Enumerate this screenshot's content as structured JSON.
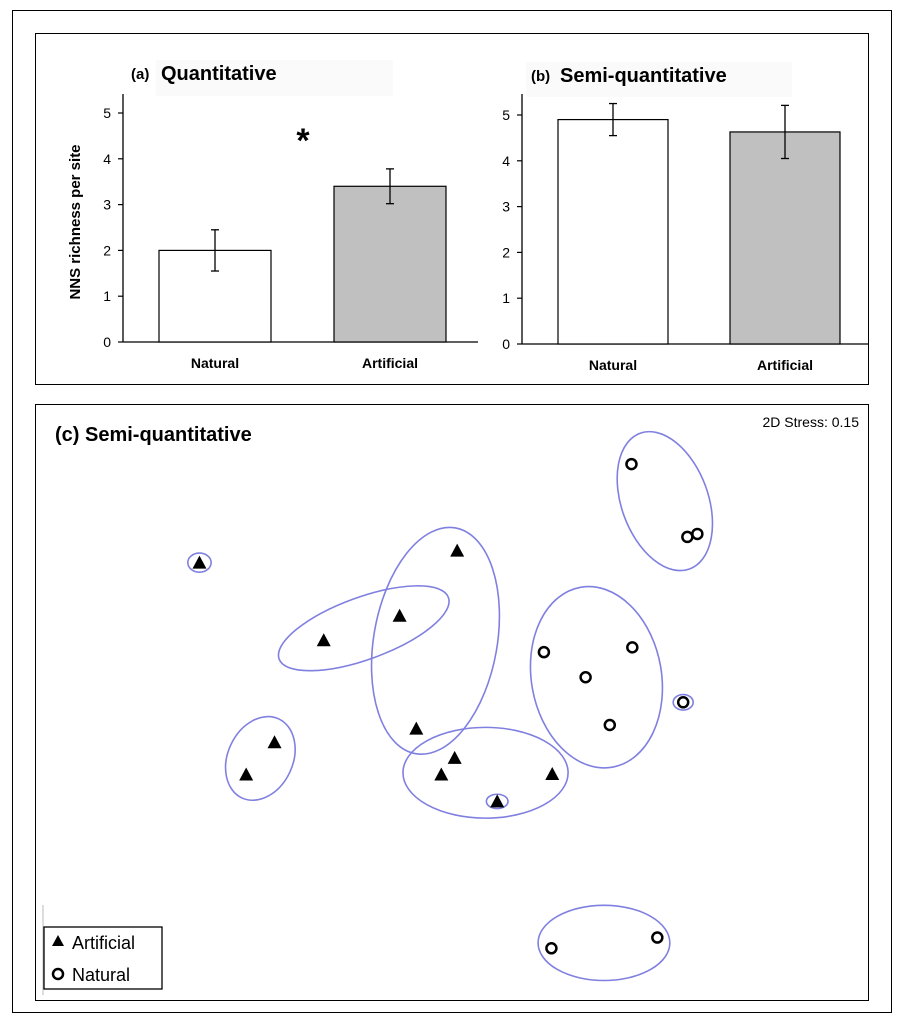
{
  "chart_data": [
    {
      "panel": "a",
      "type": "bar",
      "title": "(a) Quantitative",
      "title_prefix": "(a)",
      "title_text": "Quantitative",
      "ylabel": "NNS richness per site",
      "categories": [
        "Natural",
        "Artificial"
      ],
      "values": [
        2.0,
        3.4
      ],
      "errors": [
        0.45,
        0.38
      ],
      "bar_colors": [
        "#ffffff",
        "#c0c0c0"
      ],
      "ylim": [
        0,
        5
      ],
      "yticks": [
        0,
        1,
        2,
        3,
        4,
        5
      ],
      "annotation": "*"
    },
    {
      "panel": "b",
      "type": "bar",
      "title": "(b) Semi-quantitative",
      "title_prefix": "(b)",
      "title_text": "Semi-quantitative",
      "categories": [
        "Natural",
        "Artificial"
      ],
      "values": [
        4.9,
        4.63
      ],
      "errors": [
        0.35,
        0.58
      ],
      "bar_colors": [
        "#ffffff",
        "#c0c0c0"
      ],
      "ylim": [
        0,
        5
      ],
      "yticks": [
        0,
        1,
        2,
        3,
        4,
        5
      ]
    },
    {
      "panel": "c",
      "type": "scatter",
      "title": "(c) Semi-quantitative",
      "stress_label": "2D Stress: 0.15",
      "xlim": [
        0,
        100
      ],
      "ylim": [
        0,
        100
      ],
      "legend_position": "bottom-left",
      "ellipse_color": "#8080e0",
      "series": [
        {
          "name": "Artificial",
          "marker": "triangle",
          "points": [
            [
              19.6,
              73.6
            ],
            [
              34.5,
              60.6
            ],
            [
              43.6,
              64.7
            ],
            [
              50.5,
              75.6
            ],
            [
              45.6,
              45.8
            ],
            [
              28.6,
              43.5
            ],
            [
              25.2,
              38.1
            ],
            [
              50.2,
              40.9
            ],
            [
              48.6,
              38.1
            ],
            [
              61.9,
              38.2
            ],
            [
              55.3,
              33.6
            ]
          ]
        },
        {
          "name": "Natural",
          "marker": "circle",
          "points": [
            [
              71.4,
              90.1
            ],
            [
              79.3,
              78.4
            ],
            [
              78.1,
              77.9
            ],
            [
              60.9,
              58.6
            ],
            [
              71.5,
              59.4
            ],
            [
              65.9,
              54.4
            ],
            [
              68.8,
              46.4
            ],
            [
              77.6,
              50.2
            ],
            [
              61.8,
              9.0
            ],
            [
              74.5,
              10.8
            ]
          ]
        }
      ],
      "ellipses": [
        {
          "cx": 19.6,
          "cy": 73.6,
          "rx": 1.4,
          "ry": 1.6,
          "rot": 0
        },
        {
          "cx": 39.3,
          "cy": 62.6,
          "rx": 10.8,
          "ry": 5.2,
          "rot": -20
        },
        {
          "cx": 47.9,
          "cy": 60.5,
          "rx": 7.4,
          "ry": 19.2,
          "rot": 10
        },
        {
          "cx": 26.9,
          "cy": 40.8,
          "rx": 3.9,
          "ry": 7.3,
          "rot": 25
        },
        {
          "cx": 53.9,
          "cy": 38.4,
          "rx": 9.9,
          "ry": 7.6,
          "rot": 0
        },
        {
          "cx": 55.3,
          "cy": 33.6,
          "rx": 1.3,
          "ry": 1.2,
          "rot": 0
        },
        {
          "cx": 75.4,
          "cy": 83.9,
          "rx": 5.2,
          "ry": 12.1,
          "rot": -20
        },
        {
          "cx": 67.2,
          "cy": 54.4,
          "rx": 7.8,
          "ry": 15.3,
          "rot": -10
        },
        {
          "cx": 77.6,
          "cy": 50.2,
          "rx": 1.2,
          "ry": 1.3,
          "rot": 0
        },
        {
          "cx": 68.1,
          "cy": 9.9,
          "rx": 7.9,
          "ry": 6.3,
          "rot": 0
        }
      ]
    }
  ]
}
